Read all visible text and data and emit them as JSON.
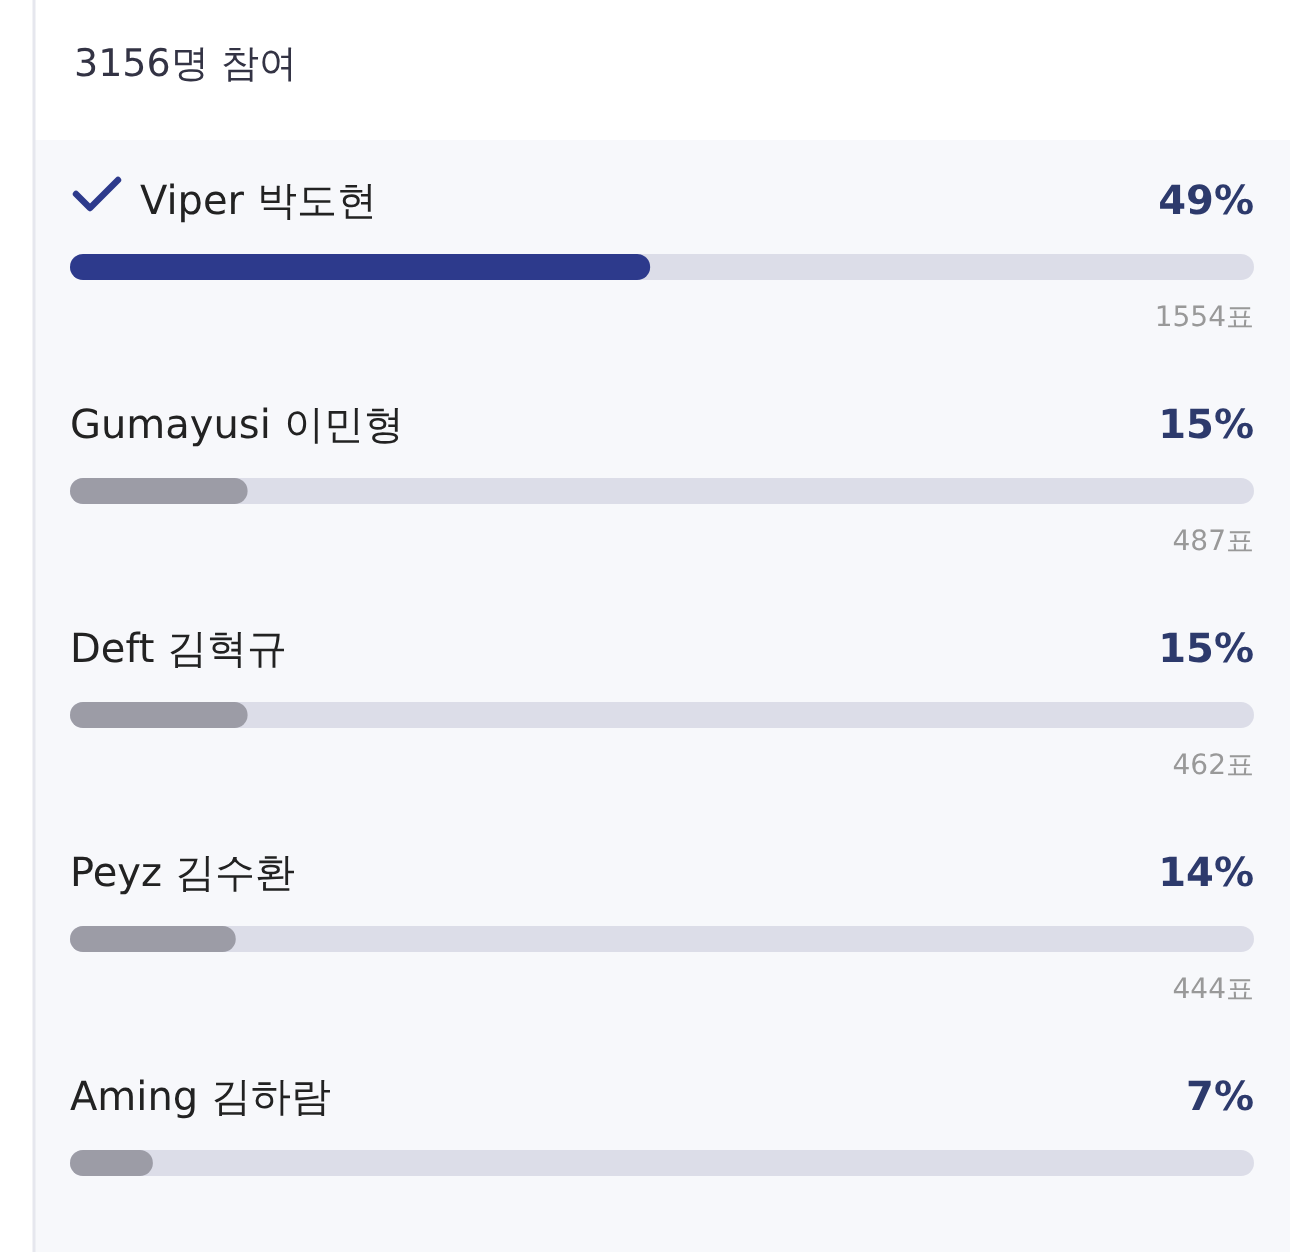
{
  "chart_data": {
    "type": "bar",
    "orientation": "horizontal",
    "title": "3156명 참여",
    "categories": [
      "Viper 박도현",
      "Gumayusi 이민형",
      "Deft 김혁규",
      "Peyz 김수환",
      "Aming 김하람"
    ],
    "values": [
      49,
      15,
      15,
      14,
      7
    ],
    "colors": [
      "#2d3a8c",
      "#9c9ca6",
      "#9c9ca6",
      "#9c9ca6",
      "#9c9ca6"
    ],
    "value_labels": [
      "49%",
      "15%",
      "15%",
      "14%",
      "7%"
    ],
    "annotations": [
      "1554표",
      "487표",
      "462표",
      "444표"
    ],
    "xlim": [
      0,
      100
    ]
  }
}
